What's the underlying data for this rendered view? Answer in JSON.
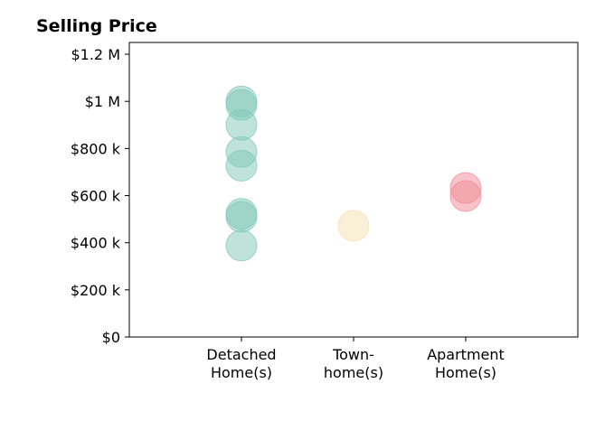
{
  "chart_data": {
    "type": "scatter",
    "title": "Selling Price",
    "xlabel": "",
    "ylabel": "",
    "categories": [
      [
        "Detached",
        "Home(s)"
      ],
      [
        "Town-",
        "home(s)"
      ],
      [
        "Apartment",
        "Home(s)"
      ]
    ],
    "ylim": [
      0,
      1250000
    ],
    "yticks": [
      {
        "value": 0,
        "label": "$0"
      },
      {
        "value": 200000,
        "label": "$200 k"
      },
      {
        "value": 400000,
        "label": "$400 k"
      },
      {
        "value": 600000,
        "label": "$600 k"
      },
      {
        "value": 800000,
        "label": "$800 k"
      },
      {
        "value": 1000000,
        "label": "$1 M"
      },
      {
        "value": 1200000,
        "label": "$1.2 M"
      }
    ],
    "grid": false,
    "series": [
      {
        "category_index": 0,
        "color": "#7fc8b8",
        "values": [
          1000000,
          985000,
          900000,
          785000,
          727000,
          523000,
          510000,
          388000
        ]
      },
      {
        "category_index": 1,
        "color": "#f5dfb0",
        "values": [
          472000
        ]
      },
      {
        "category_index": 2,
        "color": "#f28a96",
        "values": [
          632000,
          598000
        ]
      }
    ]
  }
}
